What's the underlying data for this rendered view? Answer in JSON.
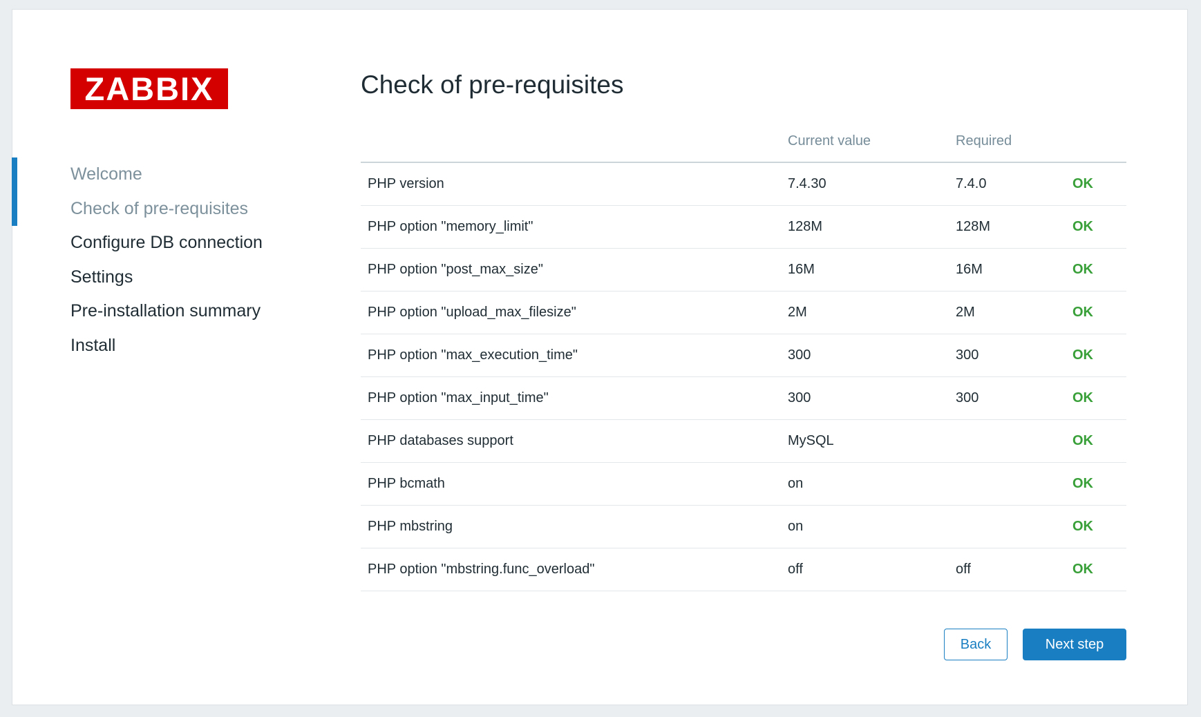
{
  "brand": {
    "logo_text": "ZABBIX",
    "brand_red": "#d40000"
  },
  "page": {
    "title": "Check of pre-requisites"
  },
  "sidebar": {
    "items": [
      {
        "label": "Welcome",
        "state": "visited"
      },
      {
        "label": "Check of pre-requisites",
        "state": "current"
      },
      {
        "label": "Configure DB connection",
        "state": "upcoming"
      },
      {
        "label": "Settings",
        "state": "upcoming"
      },
      {
        "label": "Pre-installation summary",
        "state": "upcoming"
      },
      {
        "label": "Install",
        "state": "upcoming"
      }
    ]
  },
  "table": {
    "columns": {
      "current": "Current value",
      "required": "Required"
    },
    "rows": [
      {
        "name": "PHP version",
        "current": "7.4.30",
        "required": "7.4.0",
        "status": "OK"
      },
      {
        "name": "PHP option \"memory_limit\"",
        "current": "128M",
        "required": "128M",
        "status": "OK"
      },
      {
        "name": "PHP option \"post_max_size\"",
        "current": "16M",
        "required": "16M",
        "status": "OK"
      },
      {
        "name": "PHP option \"upload_max_filesize\"",
        "current": "2M",
        "required": "2M",
        "status": "OK"
      },
      {
        "name": "PHP option \"max_execution_time\"",
        "current": "300",
        "required": "300",
        "status": "OK"
      },
      {
        "name": "PHP option \"max_input_time\"",
        "current": "300",
        "required": "300",
        "status": "OK"
      },
      {
        "name": "PHP databases support",
        "current": "MySQL",
        "required": "",
        "status": "OK"
      },
      {
        "name": "PHP bcmath",
        "current": "on",
        "required": "",
        "status": "OK"
      },
      {
        "name": "PHP mbstring",
        "current": "on",
        "required": "",
        "status": "OK"
      },
      {
        "name": "PHP option \"mbstring.func_overload\"",
        "current": "off",
        "required": "off",
        "status": "OK"
      }
    ]
  },
  "buttons": {
    "back": "Back",
    "next": "Next step"
  },
  "colors": {
    "accent_blue": "#1a7fc2",
    "ok_green": "#39a039",
    "muted_gray": "#768d99",
    "text_dark": "#1f2c33",
    "page_background": "#ebeef0"
  }
}
